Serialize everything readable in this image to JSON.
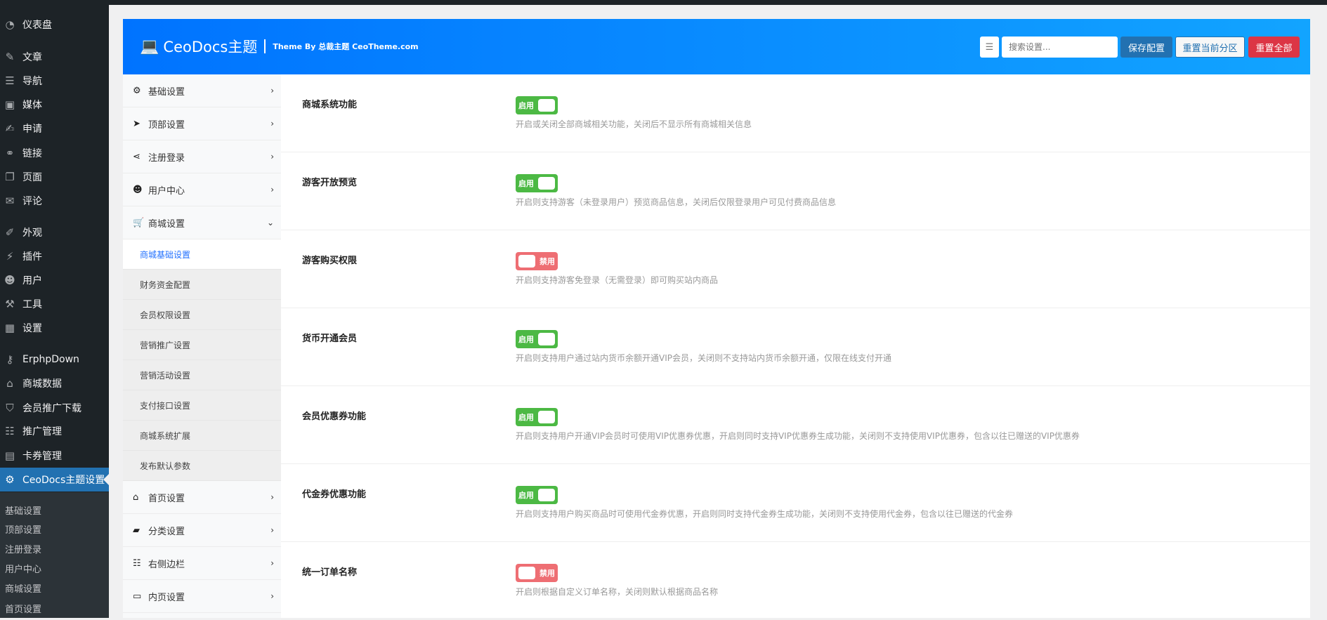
{
  "wp_menu": [
    {
      "label": "仪表盘",
      "icon": "dashboard-icon",
      "glyph": "◔"
    },
    {
      "label": "文章",
      "icon": "pin-icon",
      "glyph": "✎"
    },
    {
      "label": "导航",
      "icon": "menu-icon",
      "glyph": "☰"
    },
    {
      "label": "媒体",
      "icon": "media-icon",
      "glyph": "▣"
    },
    {
      "label": "申请",
      "icon": "edit-icon",
      "glyph": "✍"
    },
    {
      "label": "链接",
      "icon": "link-icon",
      "glyph": "⚭"
    },
    {
      "label": "页面",
      "icon": "page-icon",
      "glyph": "❐"
    },
    {
      "label": "评论",
      "icon": "comment-icon",
      "glyph": "✉"
    },
    {
      "label": "外观",
      "icon": "brush-icon",
      "glyph": "✐"
    },
    {
      "label": "插件",
      "icon": "plugin-icon",
      "glyph": "⚡"
    },
    {
      "label": "用户",
      "icon": "user-icon",
      "glyph": "☻"
    },
    {
      "label": "工具",
      "icon": "wrench-icon",
      "glyph": "⚒"
    },
    {
      "label": "设置",
      "icon": "settings-icon",
      "glyph": "▦"
    },
    {
      "label": "ErphpDown",
      "icon": "key-icon",
      "glyph": "⚷"
    },
    {
      "label": "商城数据",
      "icon": "store-icon",
      "glyph": "⌂"
    },
    {
      "label": "会员推广下载",
      "icon": "shield-icon",
      "glyph": "⛉"
    },
    {
      "label": "推广管理",
      "icon": "groups-icon",
      "glyph": "☷"
    },
    {
      "label": "卡券管理",
      "icon": "ticket-icon",
      "glyph": "▤"
    },
    {
      "label": "CeoDocs主题设置",
      "icon": "gear-icon",
      "glyph": "⚙"
    }
  ],
  "wp_submenu": [
    "基础设置",
    "顶部设置",
    "注册登录",
    "用户中心",
    "商城设置",
    "首页设置"
  ],
  "header": {
    "title": "CeoDocs主题",
    "byline": "Theme By 总裁主题 CeoTheme.com",
    "search_placeholder": "搜索设置...",
    "save": "保存配置",
    "reset_section": "重置当前分区",
    "reset_all": "重置全部"
  },
  "colors": {
    "accent": "#2271b1",
    "header_from": "#0073ff",
    "header_to": "#12a4ff",
    "on": "#4cb944",
    "off": "#ee6e73",
    "danger": "#dc3545"
  },
  "nav_top": [
    {
      "label": "基础设置",
      "icon": "gear-icon",
      "glyph": "⚙"
    },
    {
      "label": "顶部设置",
      "icon": "paper-plane-icon",
      "glyph": "➤"
    },
    {
      "label": "注册登录",
      "icon": "share-icon",
      "glyph": "⋖"
    },
    {
      "label": "用户中心",
      "icon": "user-icon",
      "glyph": "☻"
    },
    {
      "label": "商城设置",
      "icon": "cart-icon",
      "glyph": "🛒",
      "expanded": true
    }
  ],
  "nav_sub": [
    "商城基础设置",
    "财务资金配置",
    "会员权限设置",
    "营销推广设置",
    "营销活动设置",
    "支付接口设置",
    "商城系统扩展",
    "发布默认参数"
  ],
  "nav_bottom": [
    {
      "label": "首页设置",
      "icon": "home-icon",
      "glyph": "⌂"
    },
    {
      "label": "分类设置",
      "icon": "folder-icon",
      "glyph": "▰"
    },
    {
      "label": "右侧边栏",
      "icon": "list-icon",
      "glyph": "☷"
    },
    {
      "label": "内页设置",
      "icon": "window-icon",
      "glyph": "▭"
    }
  ],
  "settings": [
    {
      "title": "商城系统功能",
      "enabled": true,
      "toggle": "启用",
      "desc": "开启或关闭全部商城相关功能，关闭后不显示所有商城相关信息"
    },
    {
      "title": "游客开放预览",
      "enabled": true,
      "toggle": "启用",
      "desc": "开启则支持游客（未登录用户）预览商品信息，关闭后仅限登录用户可见付费商品信息"
    },
    {
      "title": "游客购买权限",
      "enabled": false,
      "toggle": "禁用",
      "desc": "开启则支持游客免登录（无需登录）即可购买站内商品"
    },
    {
      "title": "货币开通会员",
      "enabled": true,
      "toggle": "启用",
      "desc": "开启则支持用户通过站内货币余额开通VIP会员，关闭则不支持站内货币余额开通，仅限在线支付开通"
    },
    {
      "title": "会员优惠券功能",
      "enabled": true,
      "toggle": "启用",
      "desc": "开启则支持用户开通VIP会员时可使用VIP优惠券优惠，开启则同时支持VIP优惠券生成功能，关闭则不支持使用VIP优惠券，包含以往已赠送的VIP优惠券"
    },
    {
      "title": "代金券优惠功能",
      "enabled": true,
      "toggle": "启用",
      "desc": "开启则支持用户购买商品时可使用代金券优惠，开启则同时支持代金券生成功能，关闭则不支持使用代金券，包含以往已赠送的代金券"
    },
    {
      "title": "统一订单名称",
      "enabled": false,
      "toggle": "禁用",
      "desc": "开启则根据自定义订单名称，关闭则默认根据商品名称"
    }
  ]
}
